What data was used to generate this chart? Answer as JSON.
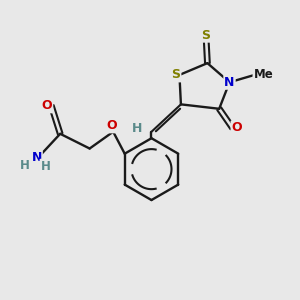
{
  "background_color": "#e8e8e8",
  "bond_color": "#1a1a1a",
  "atom_colors": {
    "S": "#808000",
    "N": "#0000cc",
    "O": "#cc0000",
    "H": "#5a8a8a",
    "C": "#1a1a1a"
  },
  "figsize": [
    3.0,
    3.0
  ],
  "dpi": 100
}
